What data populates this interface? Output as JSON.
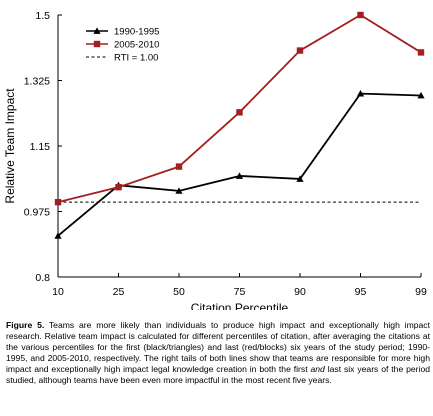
{
  "chart_data": {
    "type": "line",
    "title": "",
    "xlabel": "Citation Percentile",
    "ylabel": "Relative Team Impact",
    "categories": [
      "10",
      "25",
      "50",
      "75",
      "90",
      "95",
      "99"
    ],
    "ylim": [
      0.8,
      1.5
    ],
    "yticks": [
      "0.8",
      "0.975",
      "1.15",
      "1.325",
      "1.5"
    ],
    "ytick_values": [
      0.8,
      0.975,
      1.15,
      1.325,
      1.5
    ],
    "grid": false,
    "legend_position": "top-left",
    "series": [
      {
        "name": "1990-1995",
        "values": [
          0.91,
          1.045,
          1.03,
          1.07,
          1.062,
          1.29,
          1.285
        ],
        "color": "#000000",
        "marker": "triangle"
      },
      {
        "name": "2005-2010",
        "values": [
          1.0,
          1.04,
          1.095,
          1.24,
          1.405,
          1.5,
          1.4
        ],
        "color": "#a31f1f",
        "marker": "square"
      }
    ],
    "reference_line": {
      "name": "RTI = 1.00",
      "value": 1.0,
      "color": "#000000",
      "style": "dashed"
    }
  },
  "caption": {
    "figure_label": "Figure 5.",
    "text_part1": " Teams are more likely than individuals to produce high impact and exceptionally high impact research.  Relative team impact is calculated for different percentiles of citation, after averaging the citations at the various percentiles for the first (black/triangles) and last (red/blocks) six years of the study period; 1990-1995, and 2005-2010, respectively. The right tails of both lines show that teams are responsible for more high impact and exceptionally high impact legal knowledge creation in both the first ",
    "text_emphasis": "and",
    "text_part2": " last six years of the period studied, although teams have been even more impactful in the most recent five years."
  }
}
